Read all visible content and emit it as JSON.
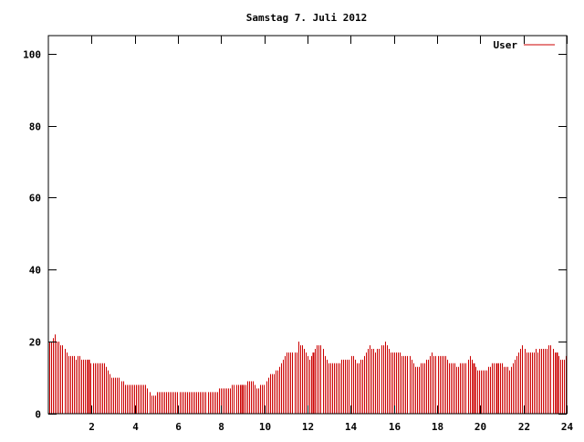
{
  "chart_data": {
    "type": "bar",
    "title": "Samstag 7. Juli 2012",
    "xlabel": "",
    "ylabel": "",
    "xlim": [
      0,
      24
    ],
    "ylim": [
      0,
      105
    ],
    "x_ticks": [
      2,
      4,
      6,
      8,
      10,
      12,
      14,
      16,
      18,
      20,
      22,
      24
    ],
    "x_tick_labels": [
      "2",
      "4",
      "6",
      "8",
      "10",
      "12",
      "14",
      "16",
      "18",
      "20",
      "22",
      "24"
    ],
    "y_ticks": [
      0,
      20,
      40,
      60,
      80,
      100
    ],
    "y_tick_labels": [
      "0",
      "20",
      "40",
      "60",
      "80",
      "100"
    ],
    "grid": false,
    "legend_position": "top-right",
    "series": [
      {
        "name": "User",
        "color": "#cc0000",
        "values": [
          20,
          20,
          21,
          22,
          20,
          20,
          19,
          19,
          18,
          17,
          16,
          16,
          16,
          16,
          15,
          16,
          16,
          15,
          15,
          15,
          15,
          15,
          14,
          14,
          14,
          14,
          14,
          14,
          14,
          14,
          13,
          12,
          11,
          10,
          10,
          10,
          10,
          10,
          9,
          9,
          8,
          8,
          8,
          8,
          8,
          8,
          8,
          8,
          8,
          8,
          8,
          8,
          7,
          6,
          5,
          5,
          5,
          6,
          6,
          6,
          6,
          6,
          6,
          6,
          6,
          6,
          6,
          6,
          6,
          6,
          6,
          6,
          6,
          6,
          6,
          6,
          6,
          6,
          6,
          6,
          6,
          6,
          6,
          6,
          6,
          6,
          6,
          6,
          6,
          6,
          7,
          7,
          7,
          7,
          7,
          7,
          7,
          8,
          8,
          8,
          8,
          8,
          8,
          8,
          8,
          9,
          9,
          9,
          9,
          8,
          7,
          7,
          8,
          8,
          8,
          9,
          10,
          11,
          11,
          11,
          12,
          12,
          13,
          14,
          15,
          16,
          17,
          17,
          17,
          17,
          17,
          17,
          20,
          19,
          19,
          18,
          17,
          16,
          15,
          16,
          17,
          18,
          19,
          19,
          19,
          18,
          16,
          15,
          14,
          14,
          14,
          14,
          14,
          14,
          14,
          15,
          15,
          15,
          15,
          15,
          16,
          16,
          15,
          14,
          14,
          15,
          15,
          16,
          17,
          18,
          19,
          18,
          18,
          17,
          18,
          18,
          19,
          19,
          20,
          19,
          18,
          17,
          17,
          17,
          17,
          17,
          17,
          16,
          16,
          16,
          16,
          16,
          15,
          14,
          13,
          13,
          13,
          14,
          14,
          14,
          15,
          15,
          16,
          17,
          16,
          16,
          16,
          16,
          16,
          16,
          16,
          15,
          14,
          14,
          14,
          14,
          13,
          13,
          14,
          14,
          14,
          14,
          15,
          16,
          15,
          14,
          13,
          12,
          12,
          12,
          12,
          12,
          12,
          13,
          13,
          14,
          14,
          14,
          14,
          14,
          14,
          13,
          13,
          13,
          12,
          13,
          14,
          15,
          16,
          17,
          18,
          19,
          18,
          17,
          17,
          17,
          17,
          17,
          18,
          17,
          18,
          18,
          18,
          18,
          18,
          19,
          19,
          18,
          17,
          17,
          16,
          15,
          15,
          15,
          16
        ],
        "highlight_index": [
          21,
          102,
          140,
          225,
          237,
          269
        ]
      }
    ]
  }
}
